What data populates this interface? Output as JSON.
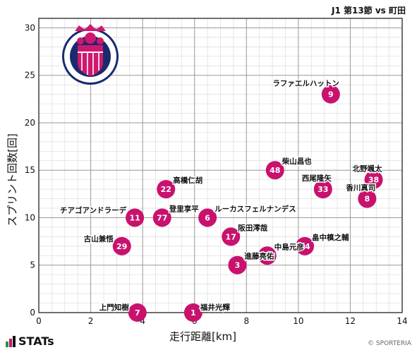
{
  "header": "J1 第13節 vs 町田",
  "footer": {
    "brand": "STATs",
    "copyright": "© SPORTERIA"
  },
  "colors": {
    "point": "#c8126e",
    "grid_major": "#9a9a9a",
    "grid_minor": "#dcdcdc",
    "crest_bg": "#d0176f"
  },
  "crest": {
    "icon": "cerezo-osaka-crest-icon",
    "ring_text": "CEREZO OSAKA"
  },
  "chart_data": {
    "type": "scatter",
    "title": "",
    "xlabel": "走行距離[km]",
    "ylabel": "スプリント回数[回]",
    "xlim": [
      0,
      14
    ],
    "ylim": [
      0,
      31
    ],
    "xticks": [
      0,
      2,
      4,
      6,
      8,
      10,
      12,
      14
    ],
    "yticks": [
      0,
      5,
      10,
      15,
      20,
      25,
      30
    ],
    "grid": true,
    "points": [
      {
        "number": "9",
        "name": "ラファエルハットン",
        "x": 11.25,
        "y": 23
      },
      {
        "number": "48",
        "name": "柴山昌也",
        "x": 9.1,
        "y": 15
      },
      {
        "number": "38",
        "name": "北野颯太",
        "x": 12.9,
        "y": 14
      },
      {
        "number": "33",
        "name": "西尾隆矢",
        "x": 10.95,
        "y": 13
      },
      {
        "number": "8",
        "name": "香川真司",
        "x": 12.65,
        "y": 12
      },
      {
        "number": "22",
        "name": "高橋仁胡",
        "x": 4.9,
        "y": 13
      },
      {
        "number": "11",
        "name": "チアゴアンドラーデ",
        "x": 3.7,
        "y": 10
      },
      {
        "number": "77",
        "name": "登里享平",
        "x": 4.75,
        "y": 10
      },
      {
        "number": "6",
        "name": "ルーカスフェルナンデス",
        "x": 6.5,
        "y": 10
      },
      {
        "number": "17",
        "name": "阪田澪哉",
        "x": 7.4,
        "y": 8
      },
      {
        "number": "44",
        "name": "畠中槙之輔",
        "x": 10.25,
        "y": 7
      },
      {
        "number": "13",
        "name": "中島元彦",
        "x": 8.8,
        "y": 6
      },
      {
        "number": "29",
        "name": "古山兼悟",
        "x": 3.2,
        "y": 7
      },
      {
        "number": "3",
        "name": "進藤亮佑",
        "x": 7.65,
        "y": 5
      },
      {
        "number": "7",
        "name": "上門知樹",
        "x": 3.8,
        "y": 0
      },
      {
        "number": "1",
        "name": "福井光輝",
        "x": 5.95,
        "y": 0
      }
    ]
  }
}
